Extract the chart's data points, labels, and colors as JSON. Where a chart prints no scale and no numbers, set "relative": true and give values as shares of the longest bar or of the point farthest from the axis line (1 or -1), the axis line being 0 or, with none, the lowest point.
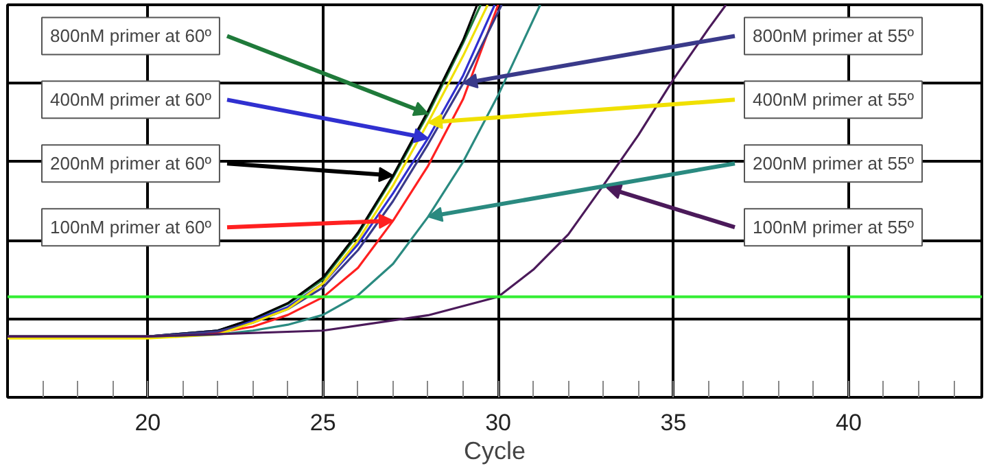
{
  "chart_data": {
    "type": "line",
    "relative": true,
    "xlabel": "Cycle",
    "xlim": [
      16,
      43.8
    ],
    "xticks": [
      20,
      25,
      30,
      35,
      40
    ],
    "grid": true,
    "series": [
      {
        "color": "#1f7a3a",
        "x": [
          16,
          20,
          22,
          23,
          24,
          25,
          26,
          27,
          28,
          29,
          29.5
        ],
        "values": [
          0.155,
          0.155,
          0.17,
          0.199,
          0.238,
          0.3,
          0.415,
          0.56,
          0.722,
          0.903,
          1.0
        ]
      },
      {
        "color": "#3030d0",
        "x": [
          16,
          20,
          22,
          23,
          24,
          25,
          26,
          27,
          28,
          29,
          29.9
        ],
        "values": [
          0.155,
          0.155,
          0.17,
          0.195,
          0.23,
          0.29,
          0.39,
          0.52,
          0.66,
          0.82,
          1.0
        ]
      },
      {
        "color": "#000000",
        "x": [
          16,
          20,
          22,
          23,
          24,
          25,
          26,
          27,
          28,
          29,
          29.4
        ],
        "values": [
          0.155,
          0.155,
          0.17,
          0.2,
          0.24,
          0.305,
          0.42,
          0.565,
          0.73,
          0.91,
          1.0
        ]
      },
      {
        "color": "#ff2020",
        "x": [
          16,
          20,
          22,
          23,
          24,
          25,
          26,
          27,
          28,
          29,
          30
        ],
        "values": [
          0.155,
          0.155,
          0.165,
          0.18,
          0.21,
          0.255,
          0.33,
          0.45,
          0.59,
          0.76,
          1.0
        ]
      },
      {
        "color": "#3a3a8a",
        "x": [
          16,
          20,
          22,
          23,
          24,
          25,
          26,
          27,
          28,
          29,
          30.1
        ],
        "values": [
          0.155,
          0.155,
          0.168,
          0.19,
          0.225,
          0.28,
          0.375,
          0.5,
          0.645,
          0.8,
          1.0
        ]
      },
      {
        "color": "#f0e000",
        "x": [
          16,
          20,
          22,
          23,
          24,
          25,
          26,
          27,
          28,
          29,
          29.7
        ],
        "values": [
          0.15,
          0.15,
          0.16,
          0.19,
          0.225,
          0.29,
          0.4,
          0.54,
          0.7,
          0.87,
          1.0
        ]
      },
      {
        "color": "#2a8a80",
        "x": [
          16,
          20,
          22,
          23,
          24,
          25,
          26,
          27,
          28,
          29,
          30,
          31.2
        ],
        "values": [
          0.155,
          0.155,
          0.16,
          0.17,
          0.185,
          0.21,
          0.26,
          0.34,
          0.46,
          0.6,
          0.77,
          1.0
        ]
      },
      {
        "color": "#4b1a5a",
        "x": [
          16,
          20,
          25,
          28,
          30,
          31,
          32,
          33,
          34,
          35,
          36,
          36.5
        ],
        "values": [
          0.155,
          0.155,
          0.17,
          0.209,
          0.256,
          0.325,
          0.415,
          0.54,
          0.668,
          0.81,
          0.939,
          1.0
        ]
      }
    ],
    "ref_lines": [
      {
        "axis": "y",
        "value": 0.256,
        "color": "#33ee33"
      }
    ],
    "annotations": [
      {
        "text": "800nM primer at 60º",
        "x": 28,
        "y": 0.722
      },
      {
        "text": "400nM primer at 60º",
        "x": 28,
        "y": 0.66
      },
      {
        "text": "200nM primer at 60º",
        "x": 27,
        "y": 0.565
      },
      {
        "text": "100nM primer at 60º",
        "x": 27,
        "y": 0.45
      },
      {
        "text": "800nM primer at 55º",
        "x": 29,
        "y": 0.8
      },
      {
        "text": "400nM primer at 55º",
        "x": 28,
        "y": 0.7
      },
      {
        "text": "200nM primer at 55º",
        "x": 28,
        "y": 0.46
      },
      {
        "text": "100nM primer at 55º",
        "x": 33.1,
        "y": 0.534
      }
    ]
  }
}
